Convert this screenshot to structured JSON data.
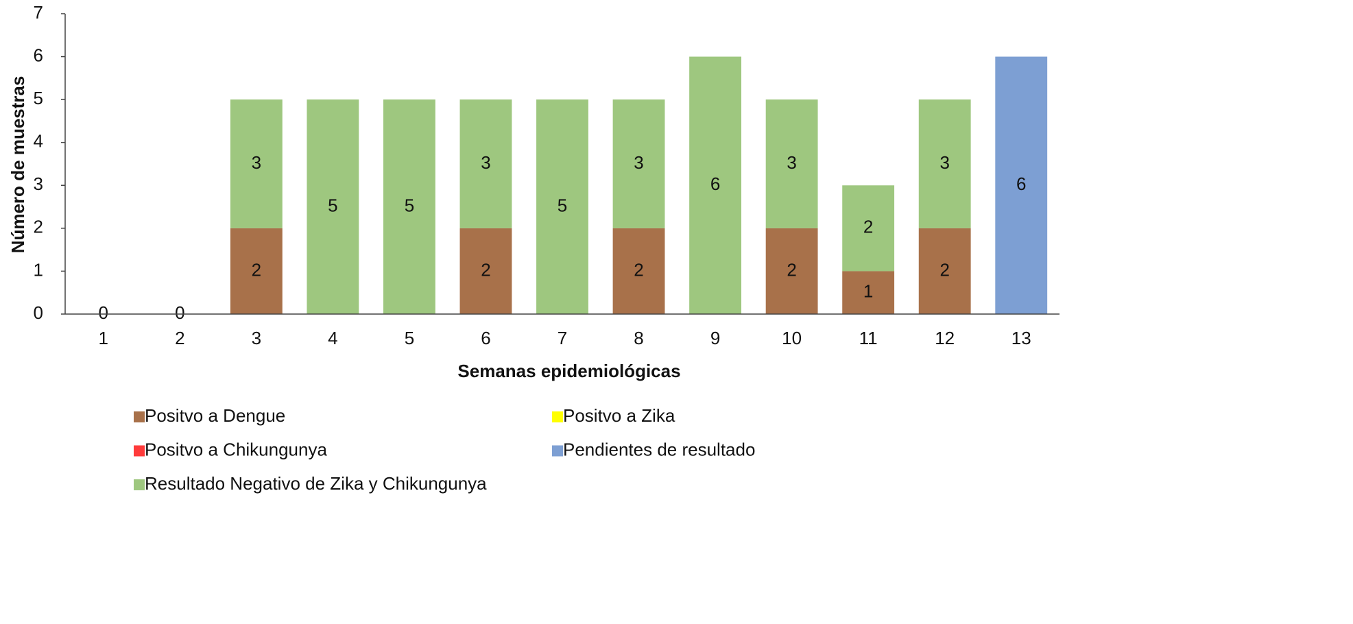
{
  "chart_data": {
    "type": "stacked_bar",
    "xlabel": "Semanas epidemiológicas",
    "ylabel": "Número de muestras",
    "categories": [
      "1",
      "2",
      "3",
      "4",
      "5",
      "6",
      "7",
      "8",
      "9",
      "10",
      "11",
      "12",
      "13"
    ],
    "series": [
      {
        "name": "Positvo a Dengue",
        "color": "#a8714a",
        "values": [
          0,
          0,
          2,
          0,
          0,
          2,
          0,
          2,
          0,
          2,
          1,
          2,
          0
        ]
      },
      {
        "name": "Positvo a  Zika",
        "color": "#ffff00",
        "values": [
          0,
          0,
          0,
          0,
          0,
          0,
          0,
          0,
          0,
          0,
          0,
          0,
          0
        ]
      },
      {
        "name": "Positvo a Chikungunya",
        "color": "#ff3b3b",
        "values": [
          0,
          0,
          0,
          0,
          0,
          0,
          0,
          0,
          0,
          0,
          0,
          0,
          0
        ]
      },
      {
        "name": "Pendientes de resultado",
        "color": "#7d9fd3",
        "values": [
          0,
          0,
          0,
          0,
          0,
          0,
          0,
          0,
          0,
          0,
          0,
          0,
          6
        ]
      },
      {
        "name": "Resultado Negativo de Zika y Chikungunya",
        "color": "#9ec77f",
        "values": [
          0,
          0,
          3,
          5,
          5,
          3,
          5,
          3,
          6,
          3,
          2,
          3,
          0
        ]
      }
    ],
    "ylim": [
      0,
      7
    ],
    "yticks": [
      0,
      1,
      2,
      3,
      4,
      5,
      6,
      7
    ],
    "grid": false
  }
}
